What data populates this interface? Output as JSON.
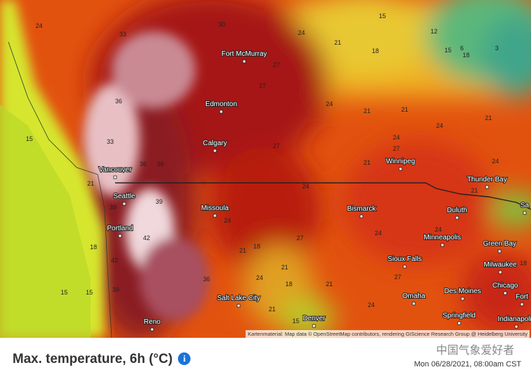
{
  "map": {
    "cities": [
      "Fort McMurray",
      "Edmonton",
      "Calgary",
      "Vancouver",
      "Seattle",
      "Portland",
      "Missoula",
      "Salt Lake City",
      "Reno",
      "Denver",
      "Bismarck",
      "Winnipeg",
      "Thunder Bay",
      "Duluth",
      "Minneapolis",
      "Sioux Falls",
      "Omaha",
      "Des Moines",
      "Green Bay",
      "Milwaukee",
      "Chicago",
      "Springfield",
      "Indianapolis",
      "Fort",
      "Sa"
    ],
    "temperatures": [
      24,
      33,
      30,
      24,
      21,
      18,
      15,
      12,
      15,
      6,
      18,
      3,
      27,
      27,
      24,
      21,
      21,
      24,
      21,
      36,
      15,
      33,
      27,
      24,
      27,
      21,
      24,
      21,
      36,
      36,
      24,
      21,
      39,
      39,
      24,
      42,
      18,
      27,
      18,
      21,
      24,
      24,
      42,
      21,
      24,
      18,
      21,
      27,
      15,
      15,
      39,
      36,
      21,
      24,
      15,
      18
    ],
    "attribution": "Kartenmaterial: Map data © OpenStreetMap contributors, rendering GIScience Research Group @ Heidelberg University"
  },
  "footer": {
    "title": "Max. temperature, 6h (°C)",
    "info": "i",
    "watermark": "中国气象爱好者",
    "timestamp": "Mon 06/28/2021, 08:00am CST"
  }
}
